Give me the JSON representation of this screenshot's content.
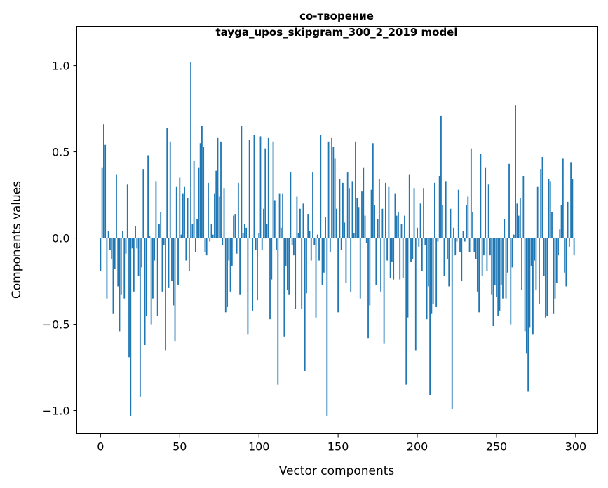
{
  "chart_data": {
    "type": "bar",
    "title_line1": "со-творение",
    "title_line2": "tayga_upos_skipgram_300_2_2019 model",
    "xlabel": "Vector components",
    "ylabel": "Components values",
    "xlim": [
      -15,
      314
    ],
    "ylim": [
      -1.134,
      1.228
    ],
    "xticks": [
      0,
      50,
      100,
      150,
      200,
      250,
      300
    ],
    "xtick_labels": [
      "0",
      "50",
      "100",
      "150",
      "200",
      "250",
      "300"
    ],
    "yticks": [
      -1.0,
      -0.5,
      0.0,
      0.5,
      1.0
    ],
    "ytick_labels": [
      "−1.0",
      "−0.5",
      "0.0",
      "0.5",
      "1.0"
    ],
    "grid": false,
    "color": "#1f77b4",
    "values": [
      -0.19,
      0.41,
      0.66,
      0.54,
      -0.35,
      0.04,
      -0.07,
      -0.12,
      -0.44,
      -0.18,
      0.37,
      -0.28,
      -0.54,
      -0.33,
      0.04,
      -0.35,
      -0.09,
      0.31,
      -0.69,
      -1.03,
      -0.06,
      -0.31,
      0.07,
      -0.06,
      -0.22,
      -0.92,
      -0.17,
      0.4,
      -0.62,
      -0.45,
      0.48,
      0.01,
      -0.5,
      -0.35,
      -0.13,
      0.33,
      -0.45,
      0.08,
      0.15,
      -0.31,
      -0.04,
      -0.65,
      0.64,
      -0.29,
      0.56,
      -0.25,
      -0.39,
      -0.6,
      0.3,
      -0.27,
      0.35,
      0.02,
      0.26,
      0.3,
      -0.13,
      0.23,
      -0.19,
      1.02,
      0.08,
      0.45,
      -0.08,
      0.11,
      0.41,
      0.55,
      0.65,
      0.53,
      -0.08,
      -0.1,
      0.32,
      -0.02,
      0.08,
      0.02,
      0.26,
      0.39,
      0.58,
      0.24,
      0.56,
      -0.04,
      0.29,
      -0.43,
      -0.4,
      -0.13,
      -0.31,
      -0.16,
      0.13,
      0.14,
      -0.09,
      0.32,
      -0.33,
      0.65,
      0.03,
      0.08,
      0.06,
      -0.56,
      0.57,
      0.0,
      -0.42,
      0.6,
      -0.07,
      -0.36,
      0.03,
      0.59,
      -0.07,
      0.17,
      0.52,
      0.08,
      0.58,
      -0.47,
      -0.24,
      0.56,
      0.22,
      -0.07,
      -0.85,
      0.26,
      0.06,
      0.26,
      -0.57,
      -0.16,
      -0.3,
      -0.33,
      0.38,
      -0.04,
      -0.1,
      -0.41,
      0.24,
      0.03,
      0.17,
      -0.41,
      0.2,
      -0.77,
      -0.32,
      0.14,
      0.04,
      -0.13,
      0.38,
      -0.04,
      -0.46,
      0.02,
      -0.13,
      0.6,
      -0.27,
      -0.2,
      0.12,
      -1.03,
      0.56,
      -0.08,
      0.58,
      0.53,
      0.46,
      0.17,
      -0.43,
      0.34,
      -0.07,
      0.32,
      0.09,
      -0.26,
      0.38,
      0.29,
      -0.31,
      0.33,
      0.03,
      0.56,
      0.23,
      0.18,
      -0.35,
      0.27,
      0.41,
      0.13,
      -0.03,
      -0.58,
      -0.39,
      0.28,
      0.55,
      0.19,
      -0.27,
      0.11,
      0.34,
      -0.31,
      0.17,
      -0.61,
      0.32,
      -0.13,
      0.3,
      -0.23,
      -0.14,
      -0.24,
      0.26,
      0.13,
      0.15,
      -0.24,
      0.08,
      -0.23,
      0.13,
      -0.85,
      -0.46,
      0.37,
      -0.14,
      -0.12,
      0.29,
      -0.65,
      0.06,
      -0.05,
      0.2,
      -0.19,
      0.29,
      -0.04,
      -0.47,
      -0.28,
      -0.91,
      -0.44,
      -0.38,
      0.32,
      -0.4,
      -0.02,
      0.36,
      0.71,
      0.19,
      -0.22,
      0.33,
      -0.12,
      -0.28,
      0.17,
      -0.99,
      0.06,
      -0.1,
      -0.02,
      0.28,
      -0.08,
      -0.25,
      0.04,
      -0.02,
      0.19,
      0.24,
      -0.08,
      0.52,
      0.15,
      -0.08,
      -0.12,
      -0.31,
      -0.43,
      0.49,
      -0.22,
      -0.1,
      0.41,
      -0.19,
      0.31,
      -0.1,
      -0.33,
      -0.51,
      -0.27,
      -0.34,
      -0.45,
      -0.42,
      -0.27,
      -0.35,
      0.11,
      -0.35,
      -0.2,
      0.43,
      -0.5,
      -0.17,
      0.02,
      0.77,
      0.2,
      0.13,
      0.23,
      -0.3,
      0.36,
      -0.54,
      -0.67,
      -0.89,
      -0.52,
      -0.16,
      -0.56,
      -0.13,
      -0.3,
      0.3,
      -0.38,
      0.4,
      0.47,
      -0.22,
      -0.46,
      -0.45,
      0.34,
      0.33,
      0.15,
      -0.44,
      -0.35,
      -0.26,
      -0.1,
      0.05,
      0.19,
      0.46,
      -0.2,
      -0.28,
      0.21,
      -0.05,
      0.44,
      0.34,
      -0.1
    ]
  }
}
